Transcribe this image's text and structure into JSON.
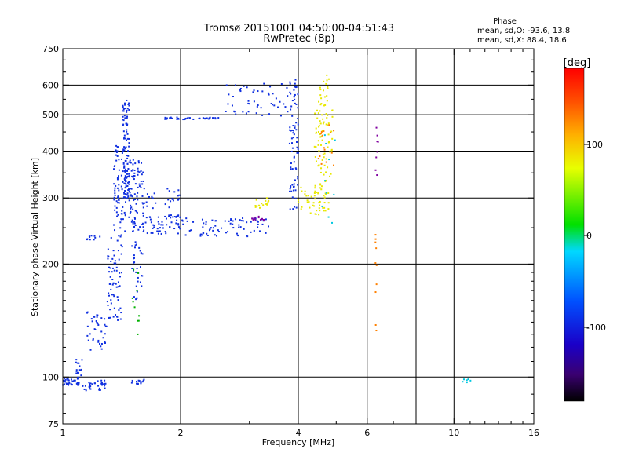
{
  "chart_data": {
    "type": "scatter",
    "title": "Tromsø 20151001 04:50:00-04:51:43",
    "subtitle": "RwPretec (8p)",
    "xlabel": "Frequency [MHz]",
    "ylabel": "Stationary phase Virtual Height [km]",
    "x_scale": "log2",
    "y_scale": "log",
    "xlim": [
      1,
      16
    ],
    "ylim": [
      75,
      750
    ],
    "xticks": [
      "1",
      "2",
      "4",
      "6",
      "10",
      "16"
    ],
    "yticks": [
      "75",
      "100",
      "200",
      "300",
      "400",
      "500",
      "600",
      "750"
    ],
    "grid_x": [
      2,
      4,
      6,
      8,
      10
    ],
    "grid_y": [
      100,
      200,
      300,
      400,
      500,
      600
    ],
    "phase_stats": {
      "heading": "Phase",
      "o_line": "mean, sd,O: -93.6, 13.8",
      "x_line": "mean, sd,X:  88.4, 18.6"
    },
    "colorbar": {
      "label": "[deg]",
      "range": [
        -180,
        180
      ],
      "ticks": [
        "100",
        "0",
        "-100"
      ]
    },
    "series": [
      {
        "color": "#1030e0",
        "segments": [
          {
            "x": [
              1.0,
              1.1
            ],
            "y": [
              95,
              100
            ],
            "n": 40
          },
          {
            "x": [
              1.12,
              1.3
            ],
            "y": [
              92,
              98
            ],
            "n": 35
          },
          {
            "x": [
              1.08,
              1.12
            ],
            "y": [
              101,
              112
            ],
            "n": 15
          },
          {
            "x": [
              1.15,
              1.3
            ],
            "y": [
              118,
              150
            ],
            "n": 40
          },
          {
            "x": [
              1.3,
              1.42
            ],
            "y": [
              140,
              240
            ],
            "n": 70
          },
          {
            "x": [
              1.35,
              1.45
            ],
            "y": [
              240,
              420
            ],
            "n": 80
          },
          {
            "x": [
              1.42,
              1.48
            ],
            "y": [
              300,
              560
            ],
            "n": 90
          },
          {
            "x": [
              1.46,
              1.62
            ],
            "y": [
              250,
              380
            ],
            "n": 80
          },
          {
            "x": [
              1.5,
              1.6
            ],
            "y": [
              160,
              250
            ],
            "n": 35
          },
          {
            "x": [
              1.6,
              2.0
            ],
            "y": [
              240,
              270
            ],
            "n": 60
          },
          {
            "x": [
              2.0,
              3.4
            ],
            "y": [
              237,
              265
            ],
            "n": 80
          },
          {
            "x": [
              1.8,
              2.5
            ],
            "y": [
              486,
              492
            ],
            "n": 40
          },
          {
            "x": [
              2.6,
              3.8
            ],
            "y": [
              495,
              610
            ],
            "n": 50
          },
          {
            "x": [
              3.8,
              4.0
            ],
            "y": [
              280,
              620
            ],
            "n": 80
          },
          {
            "x": [
              1.6,
              2.0
            ],
            "y": [
              280,
              320
            ],
            "n": 25
          },
          {
            "x": [
              1.15,
              1.25
            ],
            "y": [
              232,
              238
            ],
            "n": 10
          },
          {
            "x": [
              1.5,
              1.62
            ],
            "y": [
              95,
              100
            ],
            "n": 15
          }
        ]
      },
      {
        "color": "#e8e800",
        "segments": [
          {
            "x": [
              4.0,
              4.8
            ],
            "y": [
              270,
              320
            ],
            "n": 50
          },
          {
            "x": [
              4.4,
              4.9
            ],
            "y": [
              320,
              520
            ],
            "n": 70
          },
          {
            "x": [
              4.5,
              4.8
            ],
            "y": [
              520,
              640
            ],
            "n": 20
          },
          {
            "x": [
              3.1,
              3.4
            ],
            "y": [
              282,
              300
            ],
            "n": 15
          }
        ]
      },
      {
        "color": "#00b000",
        "segments": [
          {
            "x": [
              1.5,
              1.6
            ],
            "y": [
              115,
              195
            ],
            "n": 10
          }
        ]
      },
      {
        "color": "#ff8000",
        "segments": [
          {
            "x": [
              4.5,
              5.0
            ],
            "y": [
              360,
              470
            ],
            "n": 15
          },
          {
            "x": [
              6.3,
              6.35
            ],
            "y": [
              130,
              240
            ],
            "n": 10
          }
        ]
      },
      {
        "color": "#00c8e0",
        "segments": [
          {
            "x": [
              4.5,
              5.0
            ],
            "y": [
              240,
              470
            ],
            "n": 10
          },
          {
            "x": [
              10.5,
              11.5
            ],
            "y": [
              96,
              99
            ],
            "n": 6
          }
        ]
      },
      {
        "color": "#8000a0",
        "segments": [
          {
            "x": [
              3.0,
              3.3
            ],
            "y": [
              262,
              268
            ],
            "n": 12
          },
          {
            "x": [
              6.3,
              6.4
            ],
            "y": [
              340,
              470
            ],
            "n": 8
          }
        ]
      }
    ]
  }
}
